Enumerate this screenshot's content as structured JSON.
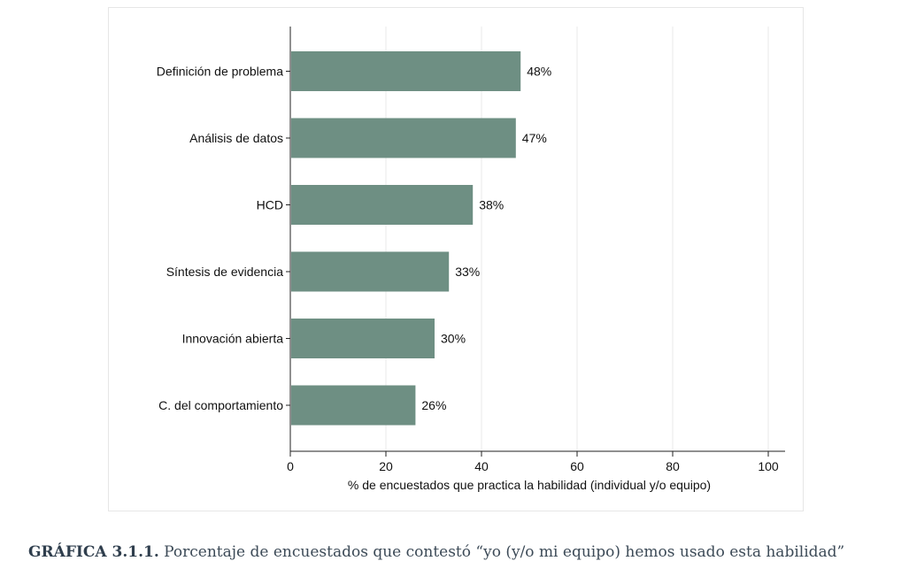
{
  "chart_data": {
    "type": "bar",
    "orientation": "horizontal",
    "categories": [
      "Definición de problema",
      "Análisis de datos",
      "HCD",
      "Síntesis de evidencia",
      "Innovación abierta",
      "C. del comportamiento"
    ],
    "values": [
      48,
      47,
      38,
      33,
      30,
      26
    ],
    "data_labels": [
      "48%",
      "47%",
      "38%",
      "33%",
      "30%",
      "26%"
    ],
    "xlabel": "% de encuestados que practica la habilidad (individual y/o equipo)",
    "ylabel": "",
    "xlim": [
      0,
      100
    ],
    "xticks": [
      0,
      20,
      40,
      60,
      80,
      100
    ],
    "xtick_labels": [
      "0",
      "20",
      "40",
      "60",
      "80",
      "100"
    ],
    "grid": "vertical",
    "bar_color": "#6e8f83",
    "grid_color": "#e8e8e8",
    "legend": "none"
  },
  "caption": {
    "prefix": "GRÁFICA 3.1.1.",
    "text": " Porcentaje de encuestados que contestó “yo (y/o mi equipo) hemos usado esta habilidad”"
  }
}
